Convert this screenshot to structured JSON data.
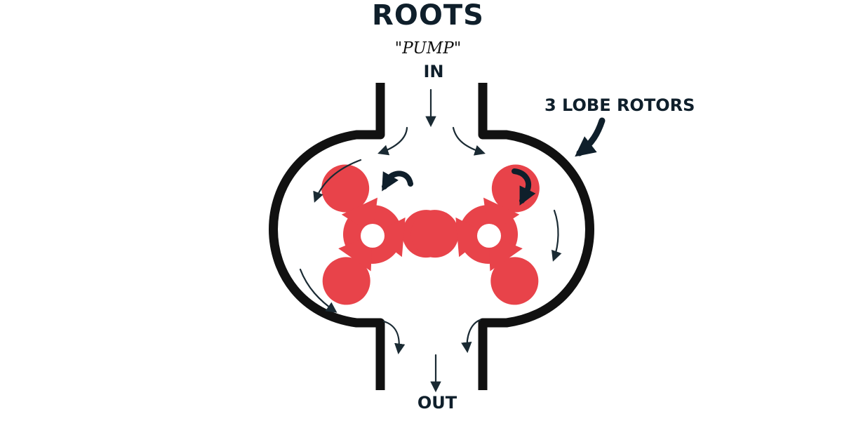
{
  "title": "ROOTS",
  "subtitle": "\"PUMP\"",
  "inlet_label": "IN",
  "outlet_label": "OUT",
  "callout_label": "3 LOBE ROTORS",
  "colors": {
    "rotor": "#e8434a",
    "casing": "#111111",
    "text": "#0f1f2b",
    "arrow": "#1a2a33"
  },
  "rotors": [
    {
      "name": "left-rotor",
      "lobes": 3,
      "rotation": "counterclockwise"
    },
    {
      "name": "right-rotor",
      "lobes": 3,
      "rotation": "clockwise"
    }
  ]
}
